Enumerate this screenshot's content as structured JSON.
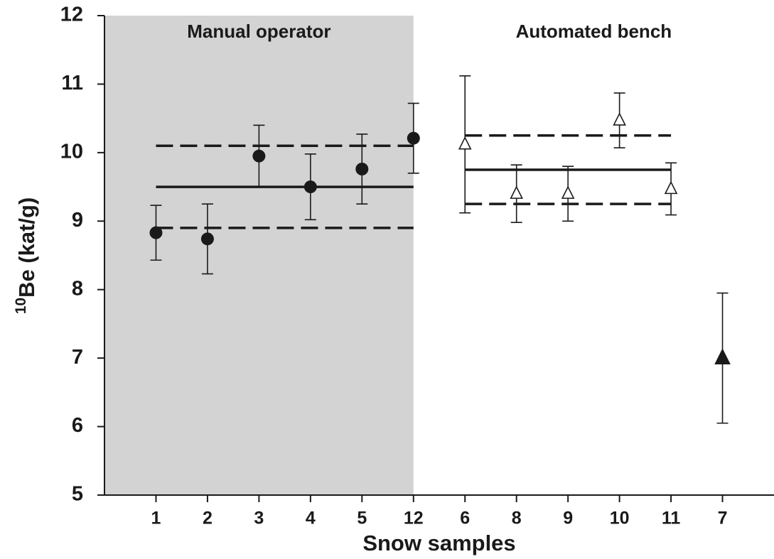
{
  "chart_data": {
    "type": "errorbar",
    "xlabel": "Snow samples",
    "ylabel": {
      "sup": "10",
      "text": "Be (kat/g)"
    },
    "categories": [
      "1",
      "2",
      "3",
      "4",
      "5",
      "12",
      "6",
      "8",
      "9",
      "10",
      "11",
      "7"
    ],
    "ylim": [
      5,
      12
    ],
    "yticks": [
      5,
      6,
      7,
      8,
      9,
      10,
      11,
      12
    ],
    "groups": [
      {
        "label": "Manual operator",
        "shade": "#d3d3d3",
        "end": "12"
      },
      {
        "label": "Automated bench"
      }
    ],
    "series": [
      {
        "marker": "circle",
        "color": "#1a1a1a",
        "values": [
          8.83,
          8.74,
          9.95,
          9.5,
          9.76,
          10.21,
          null,
          null,
          null,
          null,
          null,
          null
        ],
        "errors": [
          0.4,
          0.51,
          0.45,
          0.48,
          0.51,
          0.51,
          null,
          null,
          null,
          null,
          null,
          null
        ]
      },
      {
        "marker": "open-triangle",
        "color": "#1a1a1a",
        "values": [
          null,
          null,
          null,
          null,
          null,
          null,
          10.12,
          9.4,
          9.4,
          10.47,
          9.47,
          null
        ],
        "errors": [
          null,
          null,
          null,
          null,
          null,
          null,
          1.0,
          0.42,
          0.4,
          0.4,
          0.38,
          null
        ]
      },
      {
        "marker": "triangle",
        "color": "#1a1a1a",
        "values": [
          null,
          null,
          null,
          null,
          null,
          null,
          null,
          null,
          null,
          null,
          null,
          7.0
        ],
        "errors": [
          null,
          null,
          null,
          null,
          null,
          null,
          null,
          null,
          null,
          null,
          null,
          0.95
        ]
      }
    ],
    "reference_lines": [
      {
        "value": 9.5,
        "style": "solid",
        "start": "1",
        "end": "12"
      },
      {
        "value": 8.9,
        "style": "dashed",
        "start": "1",
        "end": "12"
      },
      {
        "value": 10.1,
        "style": "dashed",
        "start": "1",
        "end": "12"
      },
      {
        "value": 9.75,
        "style": "solid",
        "start": "6",
        "end": "11"
      },
      {
        "value": 9.25,
        "style": "dashed",
        "start": "6",
        "end": "11"
      },
      {
        "value": 10.25,
        "style": "dashed",
        "start": "6",
        "end": "11"
      }
    ]
  }
}
